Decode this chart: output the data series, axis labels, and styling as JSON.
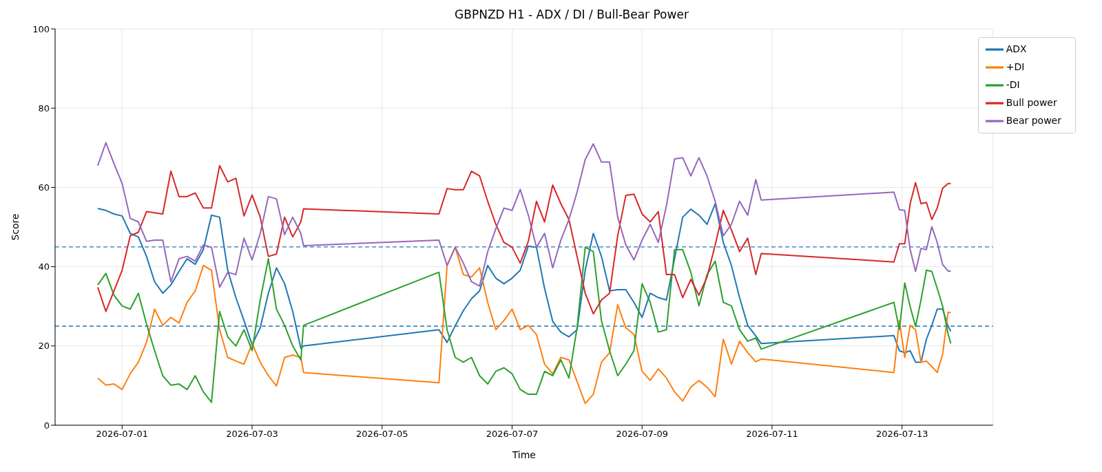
{
  "chart_data": {
    "type": "line",
    "title": "GBPNZD H1 - ADX / DI / Bull-Bear Power",
    "xlabel": "Time",
    "ylabel": "Score",
    "x": [
      "2026-06-30T15:00",
      "2026-06-30T18:00",
      "2026-06-30T21:00",
      "2026-07-01T00:00",
      "2026-07-01T03:00",
      "2026-07-01T06:00",
      "2026-07-01T09:00",
      "2026-07-01T12:00",
      "2026-07-01T15:00",
      "2026-07-01T18:00",
      "2026-07-01T21:00",
      "2026-07-02T00:00",
      "2026-07-02T03:00",
      "2026-07-02T06:00",
      "2026-07-02T09:00",
      "2026-07-02T12:00",
      "2026-07-02T15:00",
      "2026-07-02T18:00",
      "2026-07-02T21:00",
      "2026-07-03T00:00",
      "2026-07-03T03:00",
      "2026-07-03T06:00",
      "2026-07-03T09:00",
      "2026-07-03T12:00",
      "2026-07-03T15:00",
      "2026-07-03T18:00",
      "2026-07-03T19:00",
      "2026-07-05T21:00",
      "2026-07-06T00:00",
      "2026-07-06T03:00",
      "2026-07-06T06:00",
      "2026-07-06T09:00",
      "2026-07-06T12:00",
      "2026-07-06T15:00",
      "2026-07-06T18:00",
      "2026-07-06T21:00",
      "2026-07-07T00:00",
      "2026-07-07T03:00",
      "2026-07-07T06:00",
      "2026-07-07T09:00",
      "2026-07-07T12:00",
      "2026-07-07T15:00",
      "2026-07-07T18:00",
      "2026-07-07T21:00",
      "2026-07-08T00:00",
      "2026-07-08T03:00",
      "2026-07-08T06:00",
      "2026-07-08T09:00",
      "2026-07-08T12:00",
      "2026-07-08T15:00",
      "2026-07-08T18:00",
      "2026-07-08T21:00",
      "2026-07-09T00:00",
      "2026-07-09T03:00",
      "2026-07-09T06:00",
      "2026-07-09T09:00",
      "2026-07-09T12:00",
      "2026-07-09T15:00",
      "2026-07-09T18:00",
      "2026-07-09T21:00",
      "2026-07-10T00:00",
      "2026-07-10T03:00",
      "2026-07-10T06:00",
      "2026-07-10T09:00",
      "2026-07-10T12:00",
      "2026-07-10T15:00",
      "2026-07-10T18:00",
      "2026-07-10T20:00",
      "2026-07-12T21:00",
      "2026-07-12T23:00",
      "2026-07-13T01:00",
      "2026-07-13T03:00",
      "2026-07-13T05:00",
      "2026-07-13T07:00",
      "2026-07-13T09:00",
      "2026-07-13T11:00",
      "2026-07-13T13:00",
      "2026-07-13T15:00",
      "2026-07-13T17:00",
      "2026-07-13T18:00"
    ],
    "series": [
      {
        "name": "ADX",
        "color": "#1f77b4",
        "values": [
          54.7,
          54.2,
          53.3,
          52.8,
          48.4,
          47.5,
          42.6,
          36.2,
          33.3,
          35.4,
          38.8,
          42,
          40.6,
          44.3,
          53,
          52.5,
          39.1,
          32.2,
          26.4,
          20.3,
          24.6,
          33.3,
          39.7,
          35.7,
          28.7,
          19.4,
          20,
          24.1,
          20.9,
          25.1,
          28.9,
          31.9,
          33.9,
          40.3,
          37.1,
          35.7,
          37.1,
          39.1,
          45.2,
          44.9,
          34.5,
          26.2,
          23.5,
          22.3,
          24.1,
          39.1,
          48.4,
          42.6,
          33.9,
          34.2,
          34.2,
          31,
          27.2,
          33.3,
          32.2,
          31.6,
          42,
          52.5,
          54.5,
          53,
          50.7,
          55.9,
          46.1,
          40.3,
          32.2,
          25.2,
          22.5,
          20.6,
          22.6,
          18.8,
          18.3,
          18.8,
          15.9,
          15.9,
          21.7,
          25.2,
          29.3,
          29.3,
          25,
          23.7
        ]
      },
      {
        "name": "+DI",
        "color": "#ff7f0e",
        "values": [
          11.9,
          10.1,
          10.4,
          9,
          13,
          15.9,
          20.9,
          29.3,
          25.2,
          27.2,
          25.8,
          31,
          33.9,
          40.3,
          39.1,
          24.1,
          17.1,
          16.2,
          15.4,
          20.6,
          15.9,
          12.5,
          9.9,
          17.1,
          17.7,
          17.1,
          13.3,
          10.7,
          40.3,
          44.9,
          38,
          37.4,
          39.7,
          31,
          24.1,
          26.4,
          29.3,
          24.1,
          25.2,
          22.9,
          15.4,
          13,
          17.1,
          16.5,
          11,
          5.5,
          7.8,
          15.9,
          18.3,
          30.4,
          24.6,
          22.9,
          13.6,
          11.3,
          14.2,
          11.9,
          8.4,
          6.1,
          9.6,
          11.3,
          9.6,
          7.2,
          21.7,
          15.4,
          21.2,
          18.3,
          16,
          16.7,
          13.3,
          26.4,
          17.1,
          25.2,
          24.1,
          15.9,
          16.2,
          14.8,
          13.3,
          18,
          28.5,
          28.4
        ]
      },
      {
        "name": "-DI",
        "color": "#2ca02c",
        "values": [
          35.4,
          38.3,
          32.8,
          30.1,
          29.3,
          33.3,
          25.5,
          18.8,
          12.5,
          10.1,
          10.4,
          9,
          12.5,
          8.4,
          5.8,
          28.7,
          22.3,
          20,
          24.1,
          18.8,
          31.6,
          42,
          29.3,
          25.2,
          20,
          16.5,
          25.2,
          38.6,
          24.1,
          17.1,
          15.9,
          17.1,
          12.5,
          10.4,
          13.6,
          14.5,
          13,
          9,
          7.8,
          7.8,
          13.6,
          12.5,
          16.5,
          11.9,
          24.6,
          44.9,
          43.8,
          26.4,
          18.8,
          12.5,
          15.4,
          18.8,
          35.7,
          31,
          23.5,
          24.1,
          44.3,
          44.3,
          38.6,
          30.1,
          38,
          41.4,
          31,
          30.1,
          24.1,
          21.2,
          22,
          19.2,
          31,
          24.1,
          35.9,
          29.9,
          24.9,
          31.6,
          39.1,
          38.8,
          34.5,
          30,
          23,
          20.6
        ]
      },
      {
        "name": "Bull power",
        "color": "#d62728",
        "values": [
          34.8,
          28.7,
          33.9,
          39.1,
          47.8,
          48.7,
          53.9,
          53.6,
          53.3,
          64.1,
          57.7,
          57.7,
          58.6,
          54.8,
          54.8,
          65.5,
          61.4,
          62.3,
          52.8,
          58.1,
          52.5,
          42.6,
          43.2,
          52.5,
          47.5,
          51.3,
          54.6,
          53.3,
          59.7,
          59.4,
          59.4,
          64.1,
          62.9,
          56.5,
          50.7,
          46.1,
          44.9,
          40.9,
          46.4,
          56.5,
          51.3,
          60.6,
          55.9,
          51.9,
          42.6,
          33.3,
          28.1,
          31.6,
          33.3,
          47.8,
          58,
          58.3,
          53.3,
          51.3,
          53.9,
          38,
          38,
          32.2,
          36.8,
          32.8,
          37.4,
          45.5,
          54.2,
          49.3,
          43.8,
          47.2,
          38,
          43.3,
          41.2,
          45.8,
          45.8,
          55.9,
          61.2,
          55.9,
          56.2,
          51.9,
          54.8,
          59.8,
          61,
          61
        ]
      },
      {
        "name": "Bear power",
        "color": "#9467bd",
        "values": [
          65.5,
          71.3,
          66,
          61,
          52.2,
          51.3,
          46.4,
          46.7,
          46.7,
          36.2,
          42,
          42.6,
          41.4,
          45.5,
          44.9,
          34.8,
          38.6,
          38,
          47.2,
          41.7,
          48.4,
          57.7,
          57.1,
          48.1,
          52.5,
          48.4,
          45.3,
          46.7,
          40.3,
          44.9,
          40.9,
          36.2,
          35.1,
          43.8,
          49.6,
          54.8,
          54.2,
          59.5,
          53,
          44.9,
          48.4,
          39.7,
          46.7,
          51.9,
          58.8,
          67,
          71,
          66.4,
          66.4,
          52.5,
          45.5,
          41.7,
          46.7,
          50.7,
          46.1,
          55.4,
          67.2,
          67.5,
          62.9,
          67.5,
          62.9,
          56.5,
          47.8,
          50.7,
          56.5,
          53,
          62,
          56.8,
          58.8,
          54.4,
          54.2,
          44.3,
          38.8,
          44.6,
          44.3,
          50.1,
          46.1,
          40.5,
          38.9,
          38.9
        ]
      }
    ],
    "xlim": [
      "2026-06-29T23:15",
      "2026-07-14T09:35"
    ],
    "xticks": [
      "2026-07-01",
      "2026-07-03",
      "2026-07-05",
      "2026-07-07",
      "2026-07-09",
      "2026-07-11",
      "2026-07-13"
    ],
    "ylim": [
      0,
      100
    ],
    "yticks": [
      0,
      20,
      40,
      60,
      80,
      100
    ],
    "ref_lines": [
      {
        "axis": "y",
        "value": 25,
        "color": "#1f77b4",
        "line_style": "dashed"
      },
      {
        "axis": "y",
        "value": 45,
        "color": "#1f77b4",
        "line_style": "dashed"
      }
    ],
    "grid": true,
    "legend": "top right",
    "marker": "none",
    "line_style": "solid"
  }
}
